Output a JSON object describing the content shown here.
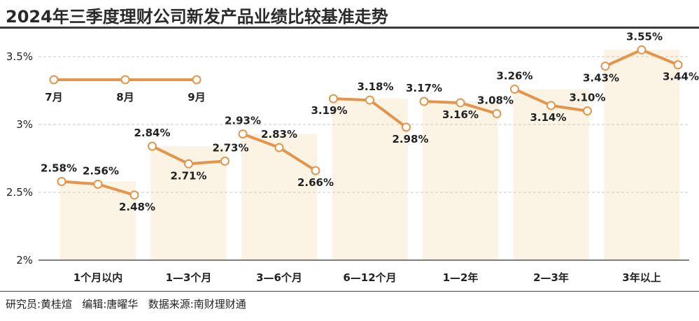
{
  "title": "2024年三季度理财公司新发产品业绩比较基准走势",
  "credits": "研究员:黄桂煊   编辑:唐曜华   数据来源:南财理财通",
  "colors": {
    "line": "#e2954b",
    "band": "#fbf3e4",
    "text": "#222222",
    "grid": "#c8c8c8"
  },
  "chart_data": {
    "type": "line",
    "title": "2024年三季度理财公司新发产品业绩比较基准走势",
    "ylim": [
      2,
      3.6
    ],
    "yticks": [
      {
        "value": 2,
        "label": "2%"
      },
      {
        "value": 2.5,
        "label": "2.5%"
      },
      {
        "value": 3,
        "label": "3%"
      },
      {
        "value": 3.5,
        "label": "3.5%"
      }
    ],
    "grid": true,
    "legend": {
      "months": [
        "7月",
        "8月",
        "9月"
      ]
    },
    "groups": [
      {
        "name": "1个月以内",
        "months": [
          "7月",
          "8月",
          "9月"
        ],
        "values": [
          2.58,
          2.56,
          2.48
        ],
        "labels": [
          "2.58%",
          "2.56%",
          "2.48%"
        ]
      },
      {
        "name": "1—3个月",
        "months": [
          "7月",
          "8月",
          "9月"
        ],
        "values": [
          2.84,
          2.71,
          2.73
        ],
        "labels": [
          "2.84%",
          "2.71%",
          "2.73%"
        ]
      },
      {
        "name": "3—6个月",
        "months": [
          "7月",
          "8月",
          "9月"
        ],
        "values": [
          2.93,
          2.83,
          2.66
        ],
        "labels": [
          "2.93%",
          "2.83%",
          "2.66%"
        ]
      },
      {
        "name": "6—12个月",
        "months": [
          "7月",
          "8月",
          "9月"
        ],
        "values": [
          3.19,
          3.18,
          2.98
        ],
        "labels": [
          "3.19%",
          "3.18%",
          "2.98%"
        ]
      },
      {
        "name": "1—2年",
        "months": [
          "7月",
          "8月",
          "9月"
        ],
        "values": [
          3.17,
          3.16,
          3.08
        ],
        "labels": [
          "3.17%",
          "3.16%",
          "3.08%"
        ]
      },
      {
        "name": "2—3年",
        "months": [
          "7月",
          "8月",
          "9月"
        ],
        "values": [
          3.26,
          3.14,
          3.1
        ],
        "labels": [
          "3.26%",
          "3.14%",
          "3.10%"
        ]
      },
      {
        "name": "3年以上",
        "months": [
          "7月",
          "8月",
          "9月"
        ],
        "values": [
          3.43,
          3.55,
          3.44
        ],
        "labels": [
          "3.43%",
          "3.55%",
          "3.44%"
        ]
      }
    ]
  }
}
